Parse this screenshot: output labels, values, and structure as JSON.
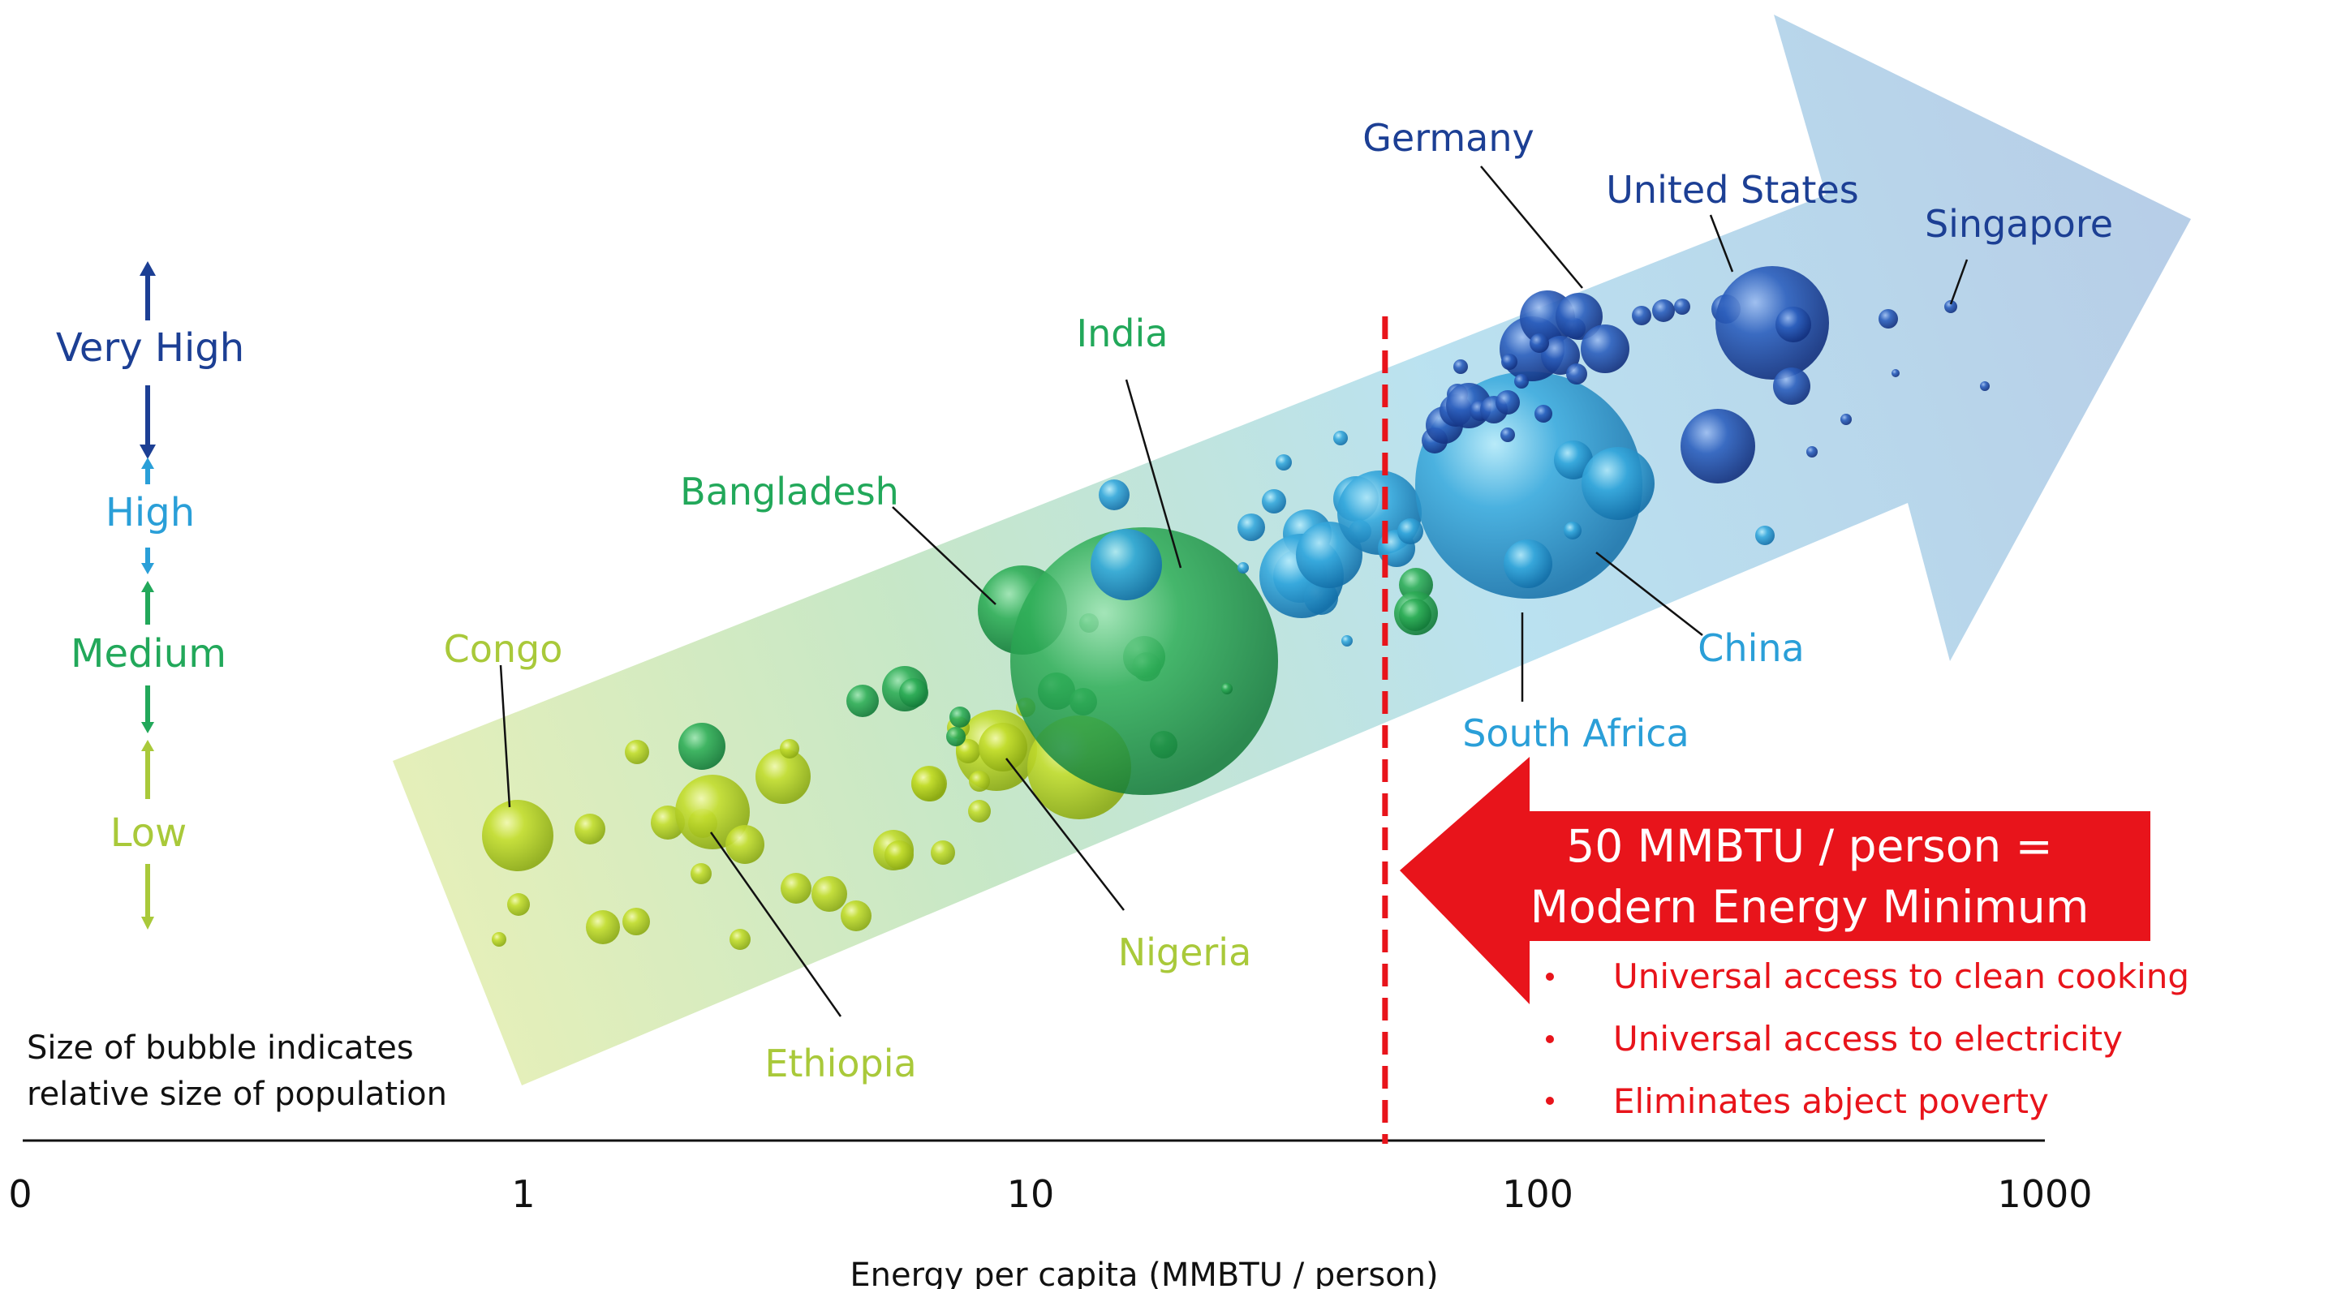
{
  "chart_data": {
    "type": "scatter",
    "subtype": "bubble",
    "x_scale": "log",
    "xlabel": "Energy per capita (MMBTU / person)",
    "x_ticks": [
      "0",
      "1",
      "10",
      "100",
      "1000"
    ],
    "x_tick_values": [
      0.1,
      1,
      10,
      100,
      1000
    ],
    "xlim": [
      0.1,
      1000
    ],
    "size_note_line1": "Size of bubble indicates",
    "size_note_line2": "relative size of population",
    "levels": [
      {
        "label": "Very High",
        "color": "#1c3f94"
      },
      {
        "label": "High",
        "color": "#2a9fd8"
      },
      {
        "label": "Medium",
        "color": "#22a85a"
      },
      {
        "label": "Low",
        "color": "#a9c93a"
      }
    ],
    "labeled_countries": [
      {
        "name": "Congo",
        "x": 1.0,
        "color": "#a9c93a"
      },
      {
        "name": "Ethiopia",
        "x": 2.3,
        "color": "#a9c93a"
      },
      {
        "name": "Nigeria",
        "x": 9.5,
        "color": "#a9c93a"
      },
      {
        "name": "Bangladesh",
        "x": 9.8,
        "color": "#22a85a"
      },
      {
        "name": "India",
        "x": 22,
        "color": "#22a85a"
      },
      {
        "name": "South Africa",
        "x": 95,
        "color": "#2a9fd8"
      },
      {
        "name": "China",
        "x": 105,
        "color": "#2a9fd8"
      },
      {
        "name": "Germany",
        "x": 140,
        "color": "#1c3f94"
      },
      {
        "name": "United States",
        "x": 300,
        "color": "#1c3f94"
      },
      {
        "name": "Singapore",
        "x": 690,
        "color": "#1c3f94"
      }
    ],
    "threshold": {
      "x": 50,
      "headline_line1": "50 MMBTU / person =",
      "headline_line2": "Modern Energy Minimum",
      "bullets": [
        "Universal access to clean cooking",
        "Universal access to electricity",
        "Eliminates abject poverty"
      ],
      "color": "#e8141b"
    }
  }
}
